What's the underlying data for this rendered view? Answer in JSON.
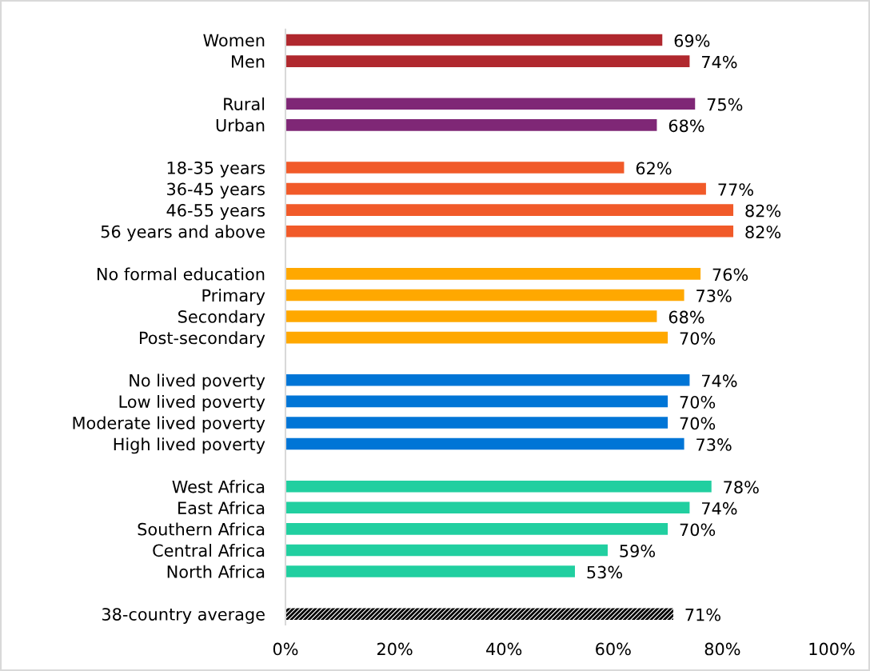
{
  "chart_data": {
    "type": "bar",
    "orientation": "horizontal",
    "categories": [
      "Women",
      "Men",
      null,
      "Rural",
      "Urban",
      null,
      "18-35 years",
      "36-45 years",
      "46-55 years",
      "56 years and above",
      null,
      "No formal education",
      "Primary",
      "Secondary",
      "Post-secondary",
      null,
      "No lived poverty",
      "Low lived poverty",
      "Moderate lived poverty",
      "High lived poverty",
      null,
      "West Africa",
      "East Africa",
      "Southern Africa",
      "Central Africa",
      "North Africa",
      null,
      "38-country average"
    ],
    "series": [
      {
        "colors": [
          "#b0282e",
          "#b0282e",
          null,
          "#7f2776",
          "#7f2776",
          null,
          "#f15a29",
          "#f15a29",
          "#f15a29",
          "#f15a29",
          null,
          "#ffa800",
          "#ffa800",
          "#ffa800",
          "#ffa800",
          null,
          "#0075d6",
          "#0075d6",
          "#0075d6",
          "#0075d6",
          null,
          "#21cfa0",
          "#21cfa0",
          "#21cfa0",
          "#21cfa0",
          "#21cfa0",
          null,
          null
        ],
        "values": [
          69,
          74,
          null,
          75,
          68,
          null,
          62,
          77,
          82,
          82,
          null,
          76,
          73,
          68,
          70,
          null,
          74,
          70,
          70,
          73,
          null,
          78,
          74,
          70,
          59,
          53,
          null,
          null
        ],
        "value_labels": [
          "69%",
          "74%",
          null,
          "75%",
          "68%",
          null,
          "62%",
          "77%",
          "82%",
          "82%",
          null,
          "76%",
          "73%",
          "68%",
          "70%",
          null,
          "74%",
          "70%",
          "70%",
          "73%",
          null,
          "78%",
          "74%",
          "70%",
          "59%",
          "53%",
          null,
          null
        ]
      },
      {
        "color": "#000000",
        "values": [
          null,
          null,
          null,
          null,
          null,
          null,
          null,
          null,
          null,
          null,
          null,
          null,
          null,
          null,
          null,
          null,
          null,
          null,
          null,
          null,
          null,
          null,
          null,
          null,
          null,
          null,
          null,
          71
        ],
        "value_labels": [
          null,
          null,
          null,
          null,
          null,
          null,
          null,
          null,
          null,
          null,
          null,
          null,
          null,
          null,
          null,
          null,
          null,
          null,
          null,
          null,
          null,
          null,
          null,
          null,
          null,
          null,
          null,
          "71%"
        ]
      }
    ],
    "xlim": [
      0,
      100
    ],
    "xticks": [
      {
        "value": 0,
        "label": "0%"
      },
      {
        "value": 20,
        "label": "20%"
      },
      {
        "value": 40,
        "label": "40%"
      },
      {
        "value": 60,
        "label": "60%"
      },
      {
        "value": 80,
        "label": "80%"
      },
      {
        "value": 100,
        "label": "100%"
      }
    ]
  }
}
